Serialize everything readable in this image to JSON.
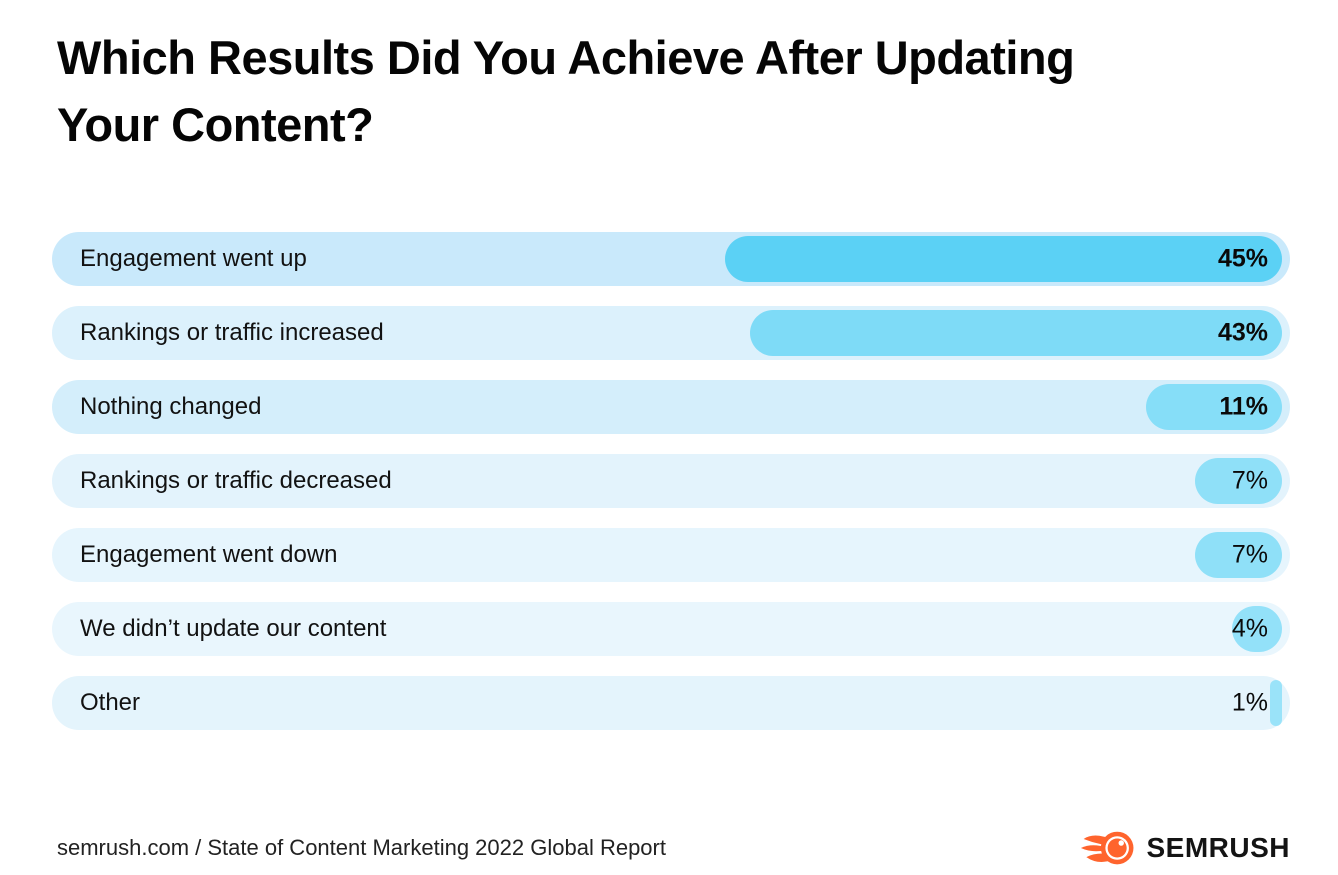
{
  "title_lines": {
    "line1": "Which Results Did You Achieve After Updating",
    "line2": "Your Content?"
  },
  "chart_data": {
    "type": "bar",
    "orientation": "horizontal",
    "title": "Which Results Did You Achieve After Updating Your Content?",
    "unit": "%",
    "xlim": [
      0,
      100
    ],
    "grid": false,
    "legend": false,
    "categories": [
      "Engagement went up",
      "Rankings or traffic increased",
      "Nothing changed",
      "Rankings or traffic decreased",
      "Engagement went down",
      "We didn’t update our content",
      "Other"
    ],
    "values": [
      45,
      43,
      11,
      7,
      7,
      4,
      1
    ],
    "value_labels": [
      "45%",
      "43%",
      "11%",
      "7%",
      "7%",
      "4%",
      "1%"
    ],
    "value_label_bold": [
      true,
      true,
      true,
      false,
      false,
      false,
      false
    ],
    "bar_colors": [
      "#5BD1F5",
      "#7EDBF7",
      "#86DEF8",
      "#8FE0F8",
      "#8FE0F8",
      "#93E1F9",
      "#9AE3F9"
    ],
    "row_backgrounds": [
      "#C9E9FB",
      "#DCF1FC",
      "#D4EEFB",
      "#E3F3FC",
      "#E6F5FD",
      "#E9F6FD",
      "#E4F4FC"
    ]
  },
  "footer": {
    "source": "semrush.com / State of Content Marketing 2022 Global Report",
    "logo_text": "SEMRUSH",
    "logo_color": "#FF642D"
  }
}
